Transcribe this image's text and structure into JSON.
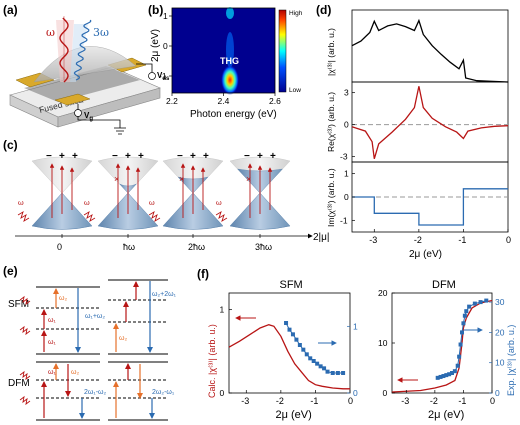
{
  "panels": {
    "a": "(a)",
    "b": "(b)",
    "c": "(c)",
    "d": "(d)",
    "e": "(e)",
    "f": "(f)"
  },
  "panel_a": {
    "omega": "ω",
    "three_omega": "3ω",
    "source": "Source",
    "drain": "Drain",
    "gate_label": "Top gate",
    "graphene": "Graphene",
    "vds": "V",
    "vds_sub": "ds",
    "vg": "V",
    "vg_sub": "g",
    "substrate": "Fused silica"
  },
  "panel_b": {
    "ylabel": "2μ (eV)",
    "xlabel": "Photon energy (eV)",
    "xticks": [
      "2.2",
      "2.4",
      "2.6"
    ],
    "yticks": [
      "1",
      "0",
      "-1"
    ],
    "thg": "THG",
    "cb_high": "High",
    "cb_low": "Low"
  },
  "panel_c": {
    "xticks": [
      "0",
      "ħω",
      "2ħω",
      "3ħω"
    ],
    "xlabel": "2|μ|",
    "omega": "ω"
  },
  "panel_d": {
    "ylabels": [
      "|χ⁽³⁾| (arb. u.)",
      "Re(χ⁽³⁾) (arb. u.)",
      "Im(χ⁽³⁾) (arb. u.)"
    ],
    "yticks_mid": [
      "3",
      "0",
      "-3"
    ],
    "yticks_bot": [
      "1",
      "0",
      "-1"
    ],
    "xticks": [
      "-3",
      "-2",
      "-1",
      "0"
    ],
    "xlabel": "2μ (eV)"
  },
  "panel_e": {
    "sfm": "SFM",
    "dfm": "DFM",
    "w1": "ω₁",
    "w2": "ω₂",
    "sum1": "ω₁+ω₂",
    "sum2": "ω₂+2ω₁",
    "diff1": "2ω₁-ω₂",
    "diff2": "2ω₂-ω₁"
  },
  "panel_f": {
    "titles": [
      "SFM",
      "DFM"
    ],
    "ylabel_left": "Calc. |χ⁽³⁾| (arb. u.)",
    "ylabel_right": "Exp. |χ⁽³⁾| (arb. u.)",
    "xlabel": "2μ (eV)",
    "xticks": [
      "-3",
      "-2",
      "-1",
      "0"
    ],
    "sfm_left_yticks": [
      "0",
      "1"
    ],
    "sfm_right_yticks": [
      "0",
      "1"
    ],
    "dfm_left_yticks": [
      "0",
      "10",
      "20"
    ],
    "dfm_right_yticks": [
      "0",
      "10",
      "20",
      "30"
    ]
  },
  "colors": {
    "red": "#b81515",
    "blue": "#2b6bb1",
    "orange": "#e6702a",
    "gray": "#999999"
  },
  "chart_data": [
    {
      "type": "line",
      "panel": "d-top",
      "ylabel": "|χ⁽³⁾| (arb. u.)",
      "xlim": [
        -3.5,
        0
      ],
      "x": [
        -3.5,
        -3.3,
        -3.1,
        -3.0,
        -2.9,
        -2.7,
        -2.5,
        -2.3,
        -2.1,
        -2.0,
        -1.9,
        -1.7,
        -1.5,
        -1.3,
        -1.1,
        -1.0,
        -0.95,
        -0.7,
        -0.4,
        0
      ],
      "y": [
        0.55,
        0.62,
        0.75,
        0.92,
        0.78,
        0.85,
        0.88,
        0.84,
        0.78,
        0.93,
        0.72,
        0.55,
        0.42,
        0.3,
        0.2,
        0.33,
        0.06,
        0.02,
        0.01,
        0.0
      ]
    },
    {
      "type": "line",
      "panel": "d-mid",
      "ylabel": "Re(χ⁽³⁾) (arb. u.)",
      "xlim": [
        -3.5,
        0
      ],
      "ylim": [
        -3.5,
        4
      ],
      "x": [
        -3.5,
        -3.2,
        -3.05,
        -3.0,
        -2.9,
        -2.6,
        -2.3,
        -2.1,
        -2.0,
        -1.9,
        -1.7,
        -1.4,
        -1.15,
        -1.0,
        -0.9,
        -0.6,
        -0.3,
        0
      ],
      "y": [
        -0.2,
        -0.6,
        -1.6,
        -3.2,
        -1.8,
        -0.7,
        0.5,
        1.6,
        3.6,
        1.6,
        0.6,
        -0.2,
        -0.7,
        -1.3,
        -0.6,
        -0.3,
        -0.15,
        -0.1
      ]
    },
    {
      "type": "line",
      "panel": "d-bot",
      "ylabel": "Im(χ⁽³⁾) (arb. u.)",
      "xlim": [
        -3.5,
        0
      ],
      "ylim": [
        -1.5,
        1.5
      ],
      "x": [
        -3.5,
        -3.0,
        -3.0,
        -2.0,
        -2.0,
        -1.0,
        -1.0,
        0
      ],
      "y": [
        0,
        0,
        -0.7,
        -0.7,
        -1.2,
        -1.2,
        0.35,
        0.35
      ]
    },
    {
      "type": "line",
      "panel": "f-SFM",
      "xlabel": "2μ (eV)",
      "xlim": [
        -3.5,
        0
      ],
      "series": [
        {
          "x": [
            -3.5,
            -3.2,
            -2.9,
            -2.6,
            -2.35,
            -2.2,
            -2.0,
            -1.8,
            -1.6,
            -1.4,
            -1.2,
            -1.0,
            -0.8,
            -0.5,
            -0.2,
            0
          ],
          "y": [
            0.55,
            0.62,
            0.7,
            0.78,
            0.82,
            0.8,
            0.68,
            0.5,
            0.35,
            0.25,
            0.15,
            0.1,
            0.08,
            0.06,
            0.05,
            0.05
          ]
        },
        {
          "x": [
            -1.85,
            -1.75,
            -1.65,
            -1.55,
            -1.45,
            -1.35,
            -1.25,
            -1.15,
            -1.05,
            -0.95,
            -0.85,
            -0.75,
            -0.65,
            -0.5,
            -0.35,
            -0.2
          ],
          "y": [
            1.05,
            0.95,
            0.88,
            0.8,
            0.72,
            0.65,
            0.58,
            0.52,
            0.48,
            0.44,
            0.4,
            0.37,
            0.32,
            0.3,
            0.3,
            0.3
          ]
        }
      ]
    },
    {
      "type": "line",
      "panel": "f-DFM",
      "xlabel": "2μ (eV)",
      "xlim": [
        -3.5,
        0
      ],
      "series": [
        {
          "x": [
            -3.5,
            -2.5,
            -2.0,
            -1.6,
            -1.3,
            -1.15,
            -1.05,
            -1.0,
            -0.9,
            -0.7,
            -0.4,
            0
          ],
          "y": [
            0.2,
            0.5,
            1.0,
            1.6,
            2.5,
            5.0,
            10.0,
            13.0,
            15.0,
            17.0,
            18.0,
            18.5
          ]
        },
        {
          "x": [
            -1.9,
            -1.8,
            -1.7,
            -1.6,
            -1.5,
            -1.4,
            -1.3,
            -1.2,
            -1.15,
            -1.1,
            -1.05,
            -1.0,
            -0.95,
            -0.9,
            -0.8,
            -0.6,
            -0.4,
            -0.2
          ],
          "y": [
            5.0,
            5.3,
            5.6,
            5.9,
            6.2,
            6.6,
            7.2,
            9,
            12,
            16,
            20,
            23,
            25.5,
            27,
            28.5,
            29.5,
            30,
            30.5
          ]
        }
      ]
    }
  ]
}
